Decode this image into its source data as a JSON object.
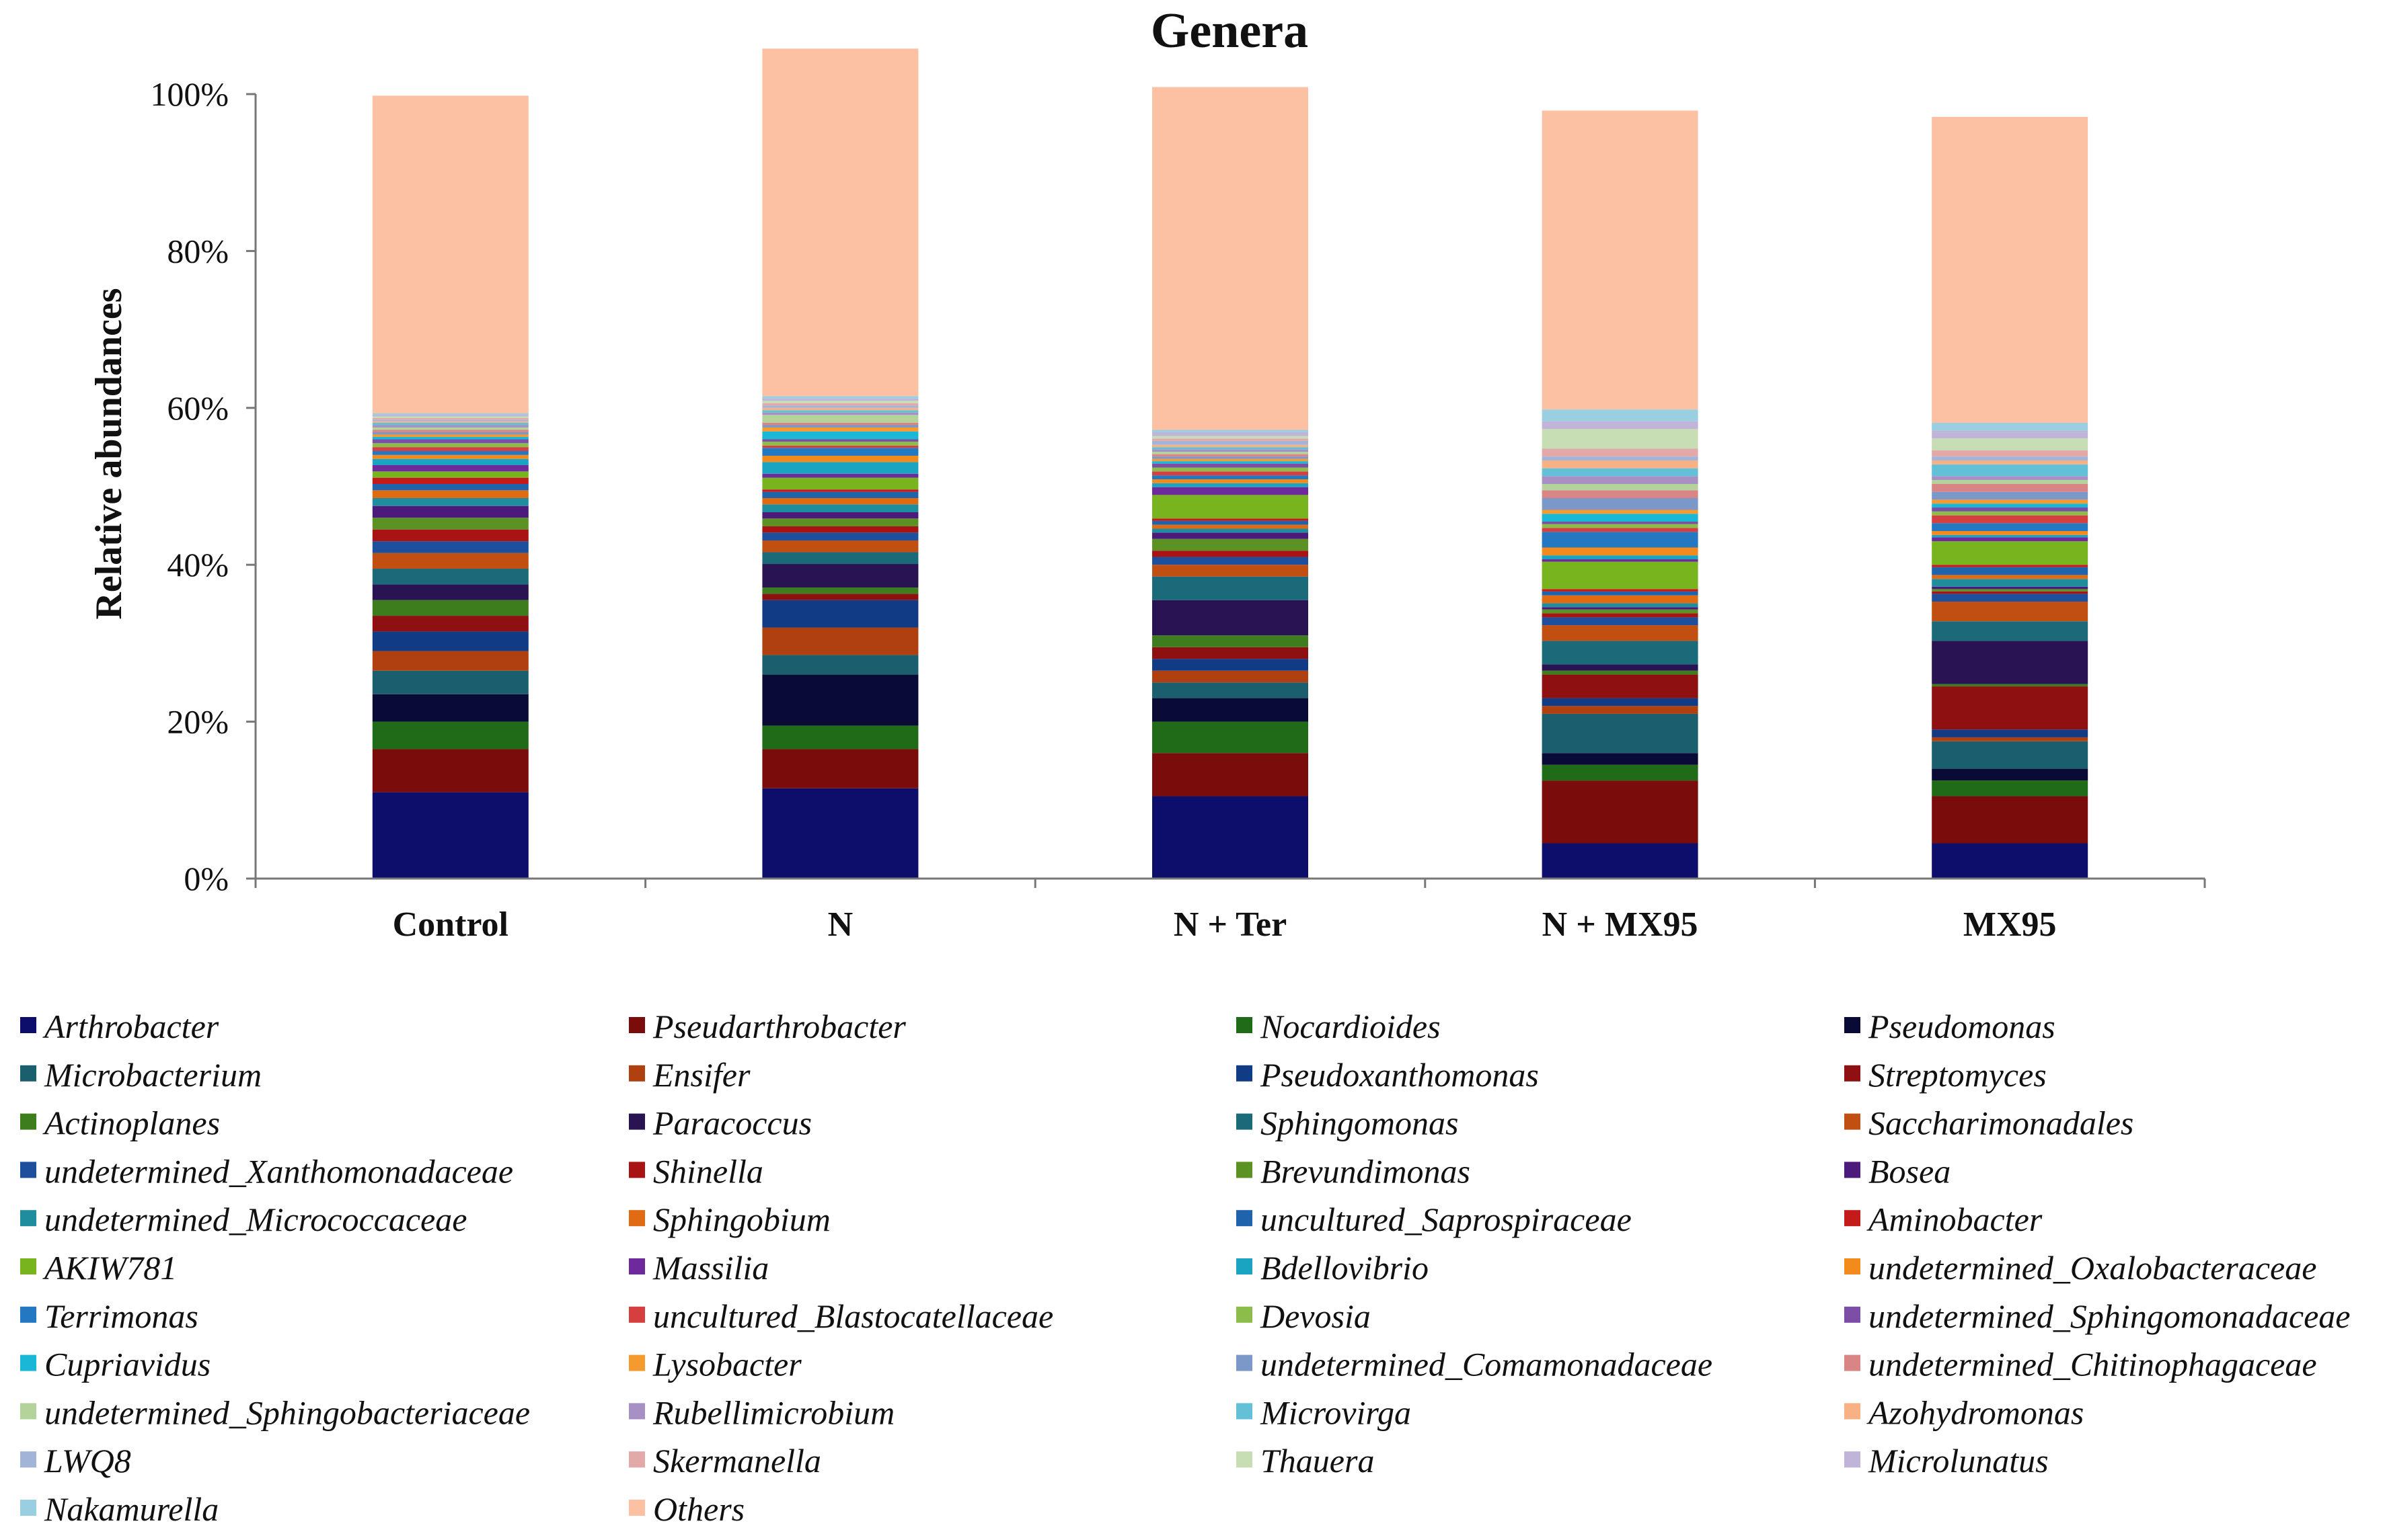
{
  "chart_data": {
    "type": "bar",
    "stacked": true,
    "title": "Genera",
    "xlabel": "",
    "ylabel": "Relative abundances",
    "ylim": [
      0,
      100
    ],
    "yticks": [
      "0%",
      "20%",
      "40%",
      "60%",
      "80%",
      "100%"
    ],
    "categories": [
      "Control",
      "N",
      "N + Ter",
      "N + MX95",
      "MX95"
    ],
    "legend_placement": "bottom",
    "series": [
      {
        "name": "Arthrobacter",
        "color": "#0d0d6b",
        "values": [
          11.0,
          11.5,
          10.5,
          4.5,
          4.5
        ]
      },
      {
        "name": "Pseudarthrobacter",
        "color": "#7a0c0c",
        "values": [
          5.5,
          5.0,
          5.5,
          8.0,
          6.0
        ]
      },
      {
        "name": "Nocardioides",
        "color": "#1f6b18",
        "values": [
          3.5,
          3.0,
          4.0,
          2.0,
          2.0
        ]
      },
      {
        "name": "Pseudomonas",
        "color": "#0a0a36",
        "values": [
          3.5,
          6.5,
          3.0,
          1.5,
          1.5
        ]
      },
      {
        "name": "Microbacterium",
        "color": "#1b5e6e",
        "values": [
          3.0,
          2.5,
          2.0,
          5.0,
          3.5
        ]
      },
      {
        "name": "Ensifer",
        "color": "#b0400f",
        "values": [
          2.5,
          3.5,
          1.5,
          1.0,
          0.5
        ]
      },
      {
        "name": "Pseudoxanthomonas",
        "color": "#123b85",
        "values": [
          2.5,
          3.5,
          1.5,
          1.0,
          1.0
        ]
      },
      {
        "name": "Streptomyces",
        "color": "#8e1010",
        "values": [
          2.0,
          0.8,
          1.5,
          3.0,
          5.5
        ]
      },
      {
        "name": "Actinoplanes",
        "color": "#3e7d1d",
        "values": [
          2.0,
          0.8,
          1.5,
          0.5,
          0.3
        ]
      },
      {
        "name": "Paracoccus",
        "color": "#2a1352",
        "values": [
          2.0,
          3.0,
          4.5,
          0.8,
          5.5
        ]
      },
      {
        "name": "Sphingomonas",
        "color": "#1a6a7a",
        "values": [
          2.0,
          1.5,
          3.0,
          3.0,
          2.5
        ]
      },
      {
        "name": "Saccharimonadales",
        "color": "#c24f12",
        "values": [
          2.0,
          1.5,
          1.5,
          2.0,
          2.5
        ]
      },
      {
        "name": "undetermined_Xanthomonadaceae",
        "color": "#1d4f9c",
        "values": [
          1.5,
          1.0,
          1.0,
          1.0,
          1.0
        ]
      },
      {
        "name": "Shinella",
        "color": "#a81414",
        "values": [
          1.5,
          0.8,
          0.8,
          0.5,
          0.3
        ]
      },
      {
        "name": "Brevundimonas",
        "color": "#5c9123",
        "values": [
          1.5,
          1.0,
          1.5,
          0.5,
          0.3
        ]
      },
      {
        "name": "Bosea",
        "color": "#4b1a7a",
        "values": [
          1.5,
          0.8,
          0.8,
          0.3,
          0.3
        ]
      },
      {
        "name": "undetermined_Micrococcaceae",
        "color": "#1f8d9e",
        "values": [
          1.0,
          1.0,
          0.5,
          0.5,
          1.0
        ]
      },
      {
        "name": "Sphingobium",
        "color": "#e06b12",
        "values": [
          1.0,
          0.8,
          0.5,
          1.0,
          0.5
        ]
      },
      {
        "name": "uncultured_Saprospiraceae",
        "color": "#1f63ad",
        "values": [
          0.8,
          0.8,
          0.5,
          0.5,
          1.0
        ]
      },
      {
        "name": "Aminobacter",
        "color": "#c41a1a",
        "values": [
          0.8,
          0.3,
          0.3,
          0.3,
          0.3
        ]
      },
      {
        "name": "AKIW781",
        "color": "#78b41e",
        "values": [
          0.8,
          1.5,
          3.0,
          3.5,
          3.0
        ]
      },
      {
        "name": "Massilia",
        "color": "#6e2a9c",
        "values": [
          0.8,
          0.5,
          1.0,
          0.3,
          0.5
        ]
      },
      {
        "name": "Bdellovibrio",
        "color": "#1ba3c2",
        "values": [
          0.8,
          1.5,
          0.5,
          0.5,
          0.3
        ]
      },
      {
        "name": "undetermined_Oxalobacteraceae",
        "color": "#f28a1c",
        "values": [
          0.5,
          0.8,
          0.5,
          1.0,
          0.5
        ]
      },
      {
        "name": "Terrimonas",
        "color": "#2478c2",
        "values": [
          0.5,
          1.0,
          0.5,
          2.0,
          1.0
        ]
      },
      {
        "name": "uncultured_Blastocatellaceae",
        "color": "#d63f3f",
        "values": [
          0.5,
          0.3,
          0.5,
          0.5,
          1.0
        ]
      },
      {
        "name": "Devosia",
        "color": "#8cbd4a",
        "values": [
          0.5,
          0.5,
          0.5,
          0.5,
          0.5
        ]
      },
      {
        "name": "undetermined_Sphingomonadaceae",
        "color": "#7d4ea6",
        "values": [
          0.5,
          0.3,
          0.5,
          0.3,
          0.5
        ]
      },
      {
        "name": "Cupriavidus",
        "color": "#1ab8d6",
        "values": [
          0.3,
          1.0,
          0.3,
          1.0,
          0.5
        ]
      },
      {
        "name": "Lysobacter",
        "color": "#f59a2e",
        "values": [
          0.3,
          0.5,
          0.3,
          0.5,
          0.5
        ]
      },
      {
        "name": "undetermined_Comamonadaceae",
        "color": "#7b98c8",
        "values": [
          0.3,
          0.3,
          0.3,
          1.5,
          1.0
        ]
      },
      {
        "name": "undetermined_Chitinophagaceae",
        "color": "#d98585",
        "values": [
          0.3,
          0.3,
          0.3,
          1.0,
          1.0
        ]
      },
      {
        "name": "undetermined_Sphingobacteriaceae",
        "color": "#b4d39a",
        "values": [
          0.3,
          1.0,
          0.3,
          0.8,
          0.5
        ]
      },
      {
        "name": "Rubellimicrobium",
        "color": "#a791c4",
        "values": [
          0.3,
          0.3,
          0.3,
          1.0,
          0.5
        ]
      },
      {
        "name": "Microvirga",
        "color": "#63c0d6",
        "values": [
          0.3,
          0.3,
          0.3,
          1.0,
          1.5
        ]
      },
      {
        "name": "Azohydromonas",
        "color": "#f7b184",
        "values": [
          0.2,
          0.3,
          0.3,
          1.0,
          0.5
        ]
      },
      {
        "name": "LWQ8",
        "color": "#a2b5d9",
        "values": [
          0.2,
          0.3,
          0.5,
          0.5,
          0.5
        ]
      },
      {
        "name": "Skermanella",
        "color": "#e3a8a8",
        "values": [
          0.2,
          0.3,
          0.3,
          1.0,
          0.8
        ]
      },
      {
        "name": "Thauera",
        "color": "#c7deb4",
        "values": [
          0.2,
          0.3,
          0.3,
          2.5,
          1.5
        ]
      },
      {
        "name": "Microlunatus",
        "color": "#c1b4d9",
        "values": [
          0.2,
          0.3,
          0.5,
          1.0,
          1.0
        ]
      },
      {
        "name": "Nakamurella",
        "color": "#99cfe0",
        "values": [
          0.2,
          0.3,
          0.3,
          1.5,
          1.0
        ]
      },
      {
        "name": "Others",
        "color": "#fbc1a2",
        "values": [
          40.5,
          44.3,
          43.7,
          38.1,
          39.0
        ]
      }
    ]
  }
}
